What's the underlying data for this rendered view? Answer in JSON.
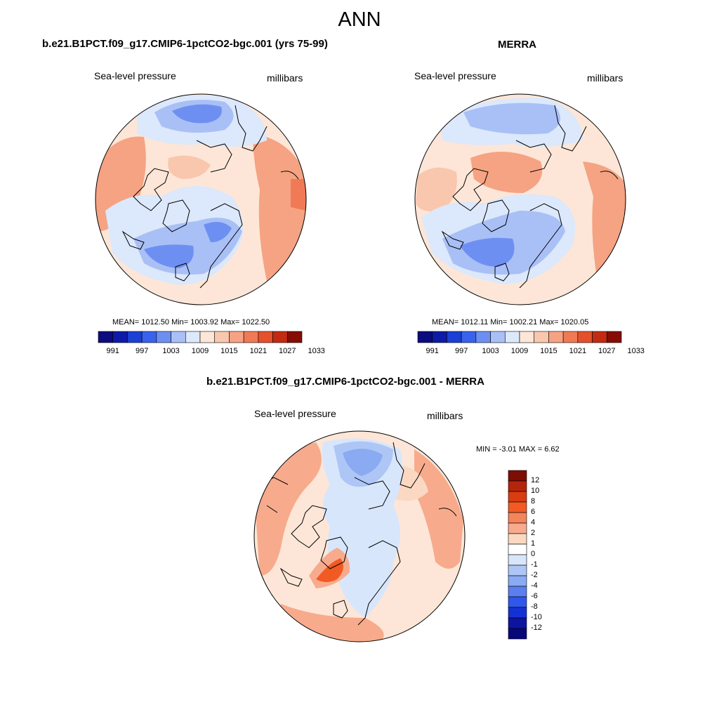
{
  "title": "ANN",
  "panels": [
    {
      "id": "model",
      "title": "b.e21.B1PCT.f09_g17.CMIP6-1pctCO2-bgc.001 (yrs 75-99)",
      "variable_label": "Sea-level pressure",
      "units_label": "millibars",
      "stats_text": "MEAN= 1012.50  Min= 1003.92  Max= 1022.50",
      "stats": {
        "mean": 1012.5,
        "min": 1003.92,
        "max": 1022.5
      }
    },
    {
      "id": "obs",
      "title": "MERRA",
      "variable_label": "Sea-level pressure",
      "units_label": "millibars",
      "stats_text": "MEAN= 1012.11  Min= 1002.21  Max= 1020.05",
      "stats": {
        "mean": 1012.11,
        "min": 1002.21,
        "max": 1020.05
      }
    },
    {
      "id": "diff",
      "title": "b.e21.B1PCT.f09_g17.CMIP6-1pctCO2-bgc.001 - MERRA",
      "variable_label": "Sea-level pressure",
      "units_label": "millibars",
      "stats_text": "MIN =  -3.01 MAX =   6.62",
      "stats": {
        "min": -3.01,
        "max": 6.62
      }
    }
  ],
  "colorbars": {
    "field": {
      "orientation": "horizontal",
      "colors": [
        "#0c0c7f",
        "#0d1ba6",
        "#1c3fd4",
        "#3b62ec",
        "#6e8ff2",
        "#a9c0f6",
        "#dce8fb",
        "#fde6d7",
        "#f9c7ae",
        "#f5a383",
        "#f07a56",
        "#e5502d",
        "#c22b12",
        "#860c04"
      ],
      "tick_labels": [
        "991",
        "997",
        "1003",
        "1009",
        "1015",
        "1021",
        "1027",
        "1033"
      ]
    },
    "diff": {
      "orientation": "vertical",
      "colors_top_to_bottom": [
        "#7d0d05",
        "#b5250b",
        "#da3c12",
        "#f25a24",
        "#f4845a",
        "#f7ab8c",
        "#fbd8c2",
        "#ffffff",
        "#d8e6fb",
        "#aec6f6",
        "#8aaaf2",
        "#5b7ff0",
        "#2f57ec",
        "#1432d4",
        "#0c14a0",
        "#08087a"
      ],
      "tick_labels": [
        "12",
        "10",
        "8",
        "6",
        "4",
        "2",
        "1",
        "0",
        "-1",
        "-2",
        "-4",
        "-6",
        "-8",
        "-10",
        "-12"
      ]
    }
  },
  "map_colors": {
    "field_base": "#fde6d7",
    "field_light_blue": "#dce8fb",
    "field_mid_blue": "#a9c0f6",
    "field_blue": "#6e8ff2",
    "field_light_red": "#f9c7ae",
    "field_red": "#f5a383",
    "field_deep_red": "#f07a56",
    "diff_base": "#fde6d7",
    "diff_light_blue": "#d8e6fb",
    "diff_blue": "#aec6f6",
    "diff_mid_blue": "#8aaaf2",
    "diff_light_red": "#fbd8c2",
    "diff_red": "#f7ab8c",
    "diff_deep_red": "#f25a24",
    "coast": "#000000"
  }
}
